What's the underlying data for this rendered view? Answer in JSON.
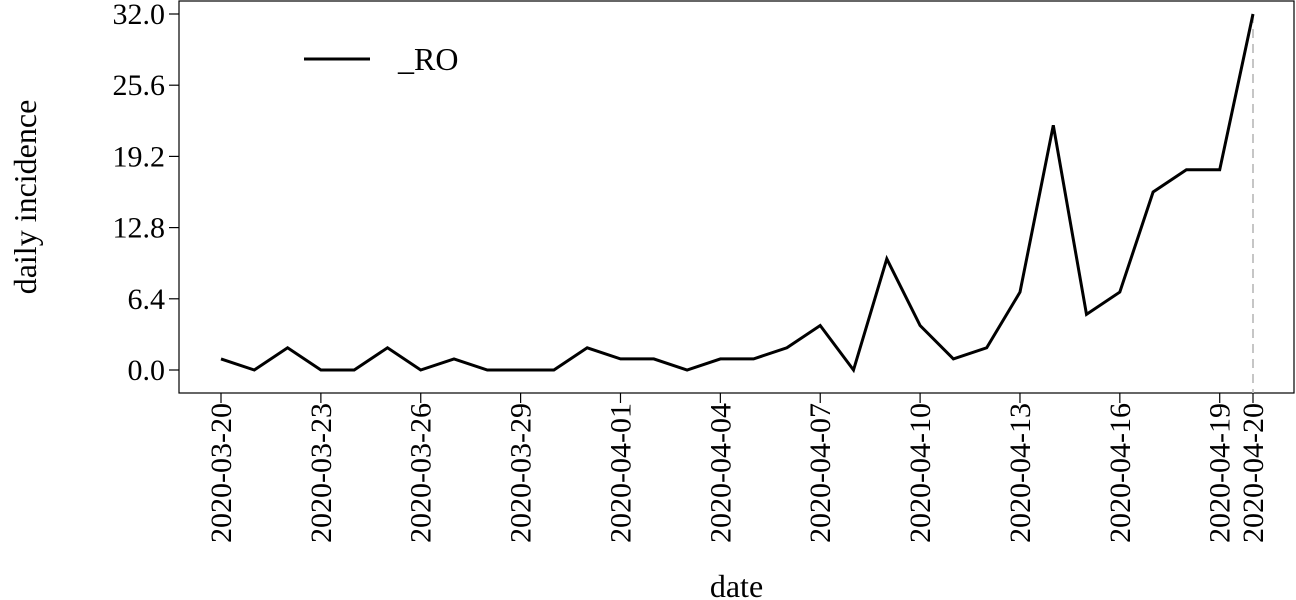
{
  "chart_data": {
    "type": "line",
    "xlabel": "date",
    "ylabel": "daily incidence",
    "ylim": [
      0,
      32
    ],
    "grid": false,
    "legend_position": "top-left",
    "y_ticks": [
      "0.0",
      "6.4",
      "12.8",
      "19.2",
      "25.6",
      "32.0"
    ],
    "x_tick_labels": [
      "2020-03-20",
      "2020-03-23",
      "2020-03-26",
      "2020-03-29",
      "2020-04-01",
      "2020-04-04",
      "2020-04-07",
      "2020-04-10",
      "2020-04-13",
      "2020-04-16",
      "2020-04-19",
      "2020-04-20"
    ],
    "x": [
      "2020-03-20",
      "2020-03-21",
      "2020-03-22",
      "2020-03-23",
      "2020-03-24",
      "2020-03-25",
      "2020-03-26",
      "2020-03-27",
      "2020-03-28",
      "2020-03-29",
      "2020-03-30",
      "2020-03-31",
      "2020-04-01",
      "2020-04-02",
      "2020-04-03",
      "2020-04-04",
      "2020-04-05",
      "2020-04-06",
      "2020-04-07",
      "2020-04-08",
      "2020-04-09",
      "2020-04-10",
      "2020-04-11",
      "2020-04-12",
      "2020-04-13",
      "2020-04-14",
      "2020-04-15",
      "2020-04-16",
      "2020-04-17",
      "2020-04-18",
      "2020-04-19",
      "2020-04-20"
    ],
    "series": [
      {
        "name": "_RO",
        "color": "#000000",
        "values": [
          1,
          0,
          2,
          0,
          0,
          2,
          0,
          1,
          0,
          0,
          0,
          2,
          1,
          1,
          0,
          1,
          1,
          2,
          4,
          0,
          10,
          4,
          1,
          2,
          7,
          22,
          5,
          7,
          16,
          18,
          18,
          32
        ]
      }
    ],
    "marker_line": {
      "x": "2020-04-20",
      "style": "dashed",
      "color": "#c0c0c0"
    }
  }
}
